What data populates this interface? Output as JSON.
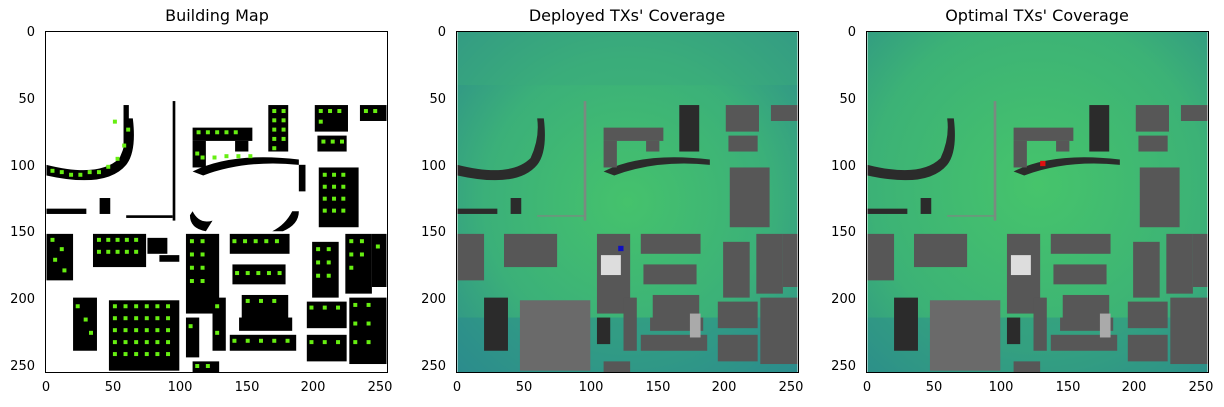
{
  "panels": [
    {
      "title": "Building Map",
      "y_ticks": [
        "0",
        "50",
        "100",
        "150",
        "200",
        "250"
      ],
      "x_ticks": [
        "0",
        "50",
        "100",
        "150",
        "200",
        "250"
      ]
    },
    {
      "title": "Deployed TXs' Coverage",
      "y_ticks": [
        "0",
        "50",
        "100",
        "150",
        "200",
        "250"
      ],
      "x_ticks": [
        "0",
        "50",
        "100",
        "150",
        "200",
        "250"
      ],
      "tx_color": "#1010c0"
    },
    {
      "title": "Optimal TXs' Coverage",
      "y_ticks": [
        "0",
        "50",
        "100",
        "150",
        "200",
        "250"
      ],
      "x_ticks": [
        "0",
        "50",
        "100",
        "150",
        "200",
        "250"
      ],
      "tx_color": "#e01010"
    }
  ],
  "colors": {
    "building": "#000000",
    "marker": "#66ee11",
    "coverage_high": "#3cb86e",
    "coverage_mid": "#2f9e88",
    "coverage_low": "#2a7f8e",
    "building_gray": "#555555"
  }
}
